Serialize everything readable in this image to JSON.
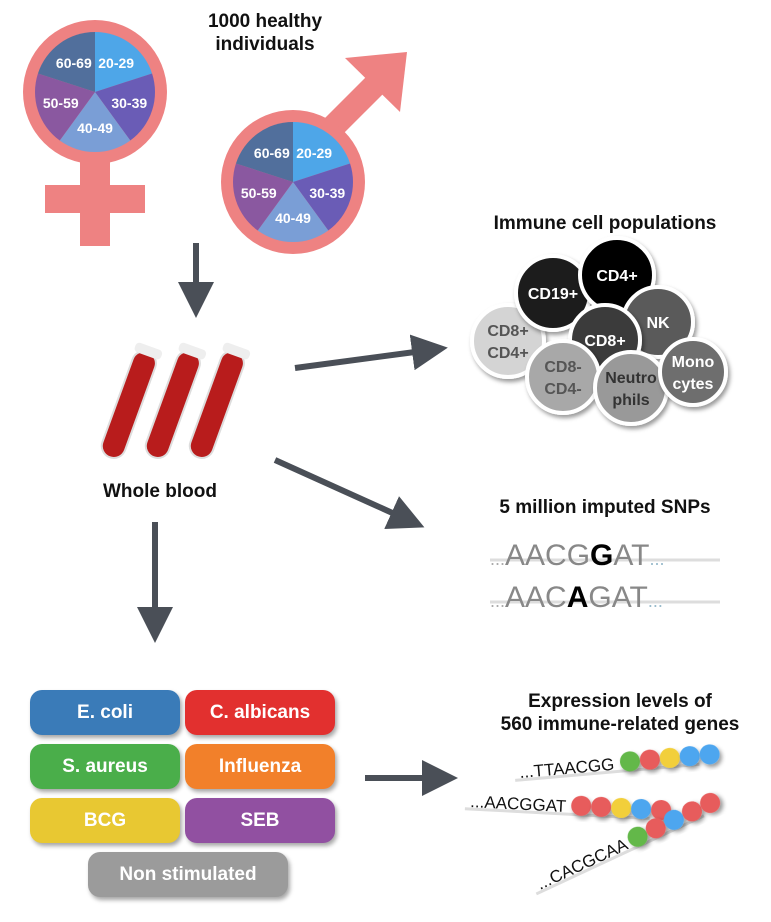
{
  "cohort": {
    "title_line1": "1000 healthy",
    "title_line2": "individuals",
    "age_groups": [
      "20-29",
      "30-39",
      "40-49",
      "50-59",
      "60-69"
    ],
    "age_colors": [
      "#4ea6e8",
      "#6a5cb6",
      "#7a9ed6",
      "#8a58a0",
      "#516f9c"
    ],
    "symbol_color": "#ee8282"
  },
  "blood": {
    "label": "Whole blood"
  },
  "cells": {
    "title": "Immune cell populations",
    "items": [
      {
        "label": "CD8+",
        "label2": "CD4+",
        "color": "#d4d4d4",
        "text": "#555"
      },
      {
        "label": "CD19+",
        "label2": "",
        "color": "#1e1e1e",
        "text": "#fff"
      },
      {
        "label": "CD4+",
        "label2": "",
        "color": "#000000",
        "text": "#fff"
      },
      {
        "label": "NK",
        "label2": "",
        "color": "#5a5a5a",
        "text": "#fff"
      },
      {
        "label": "CD8+",
        "label2": "",
        "color": "#3a3a3a",
        "text": "#fff"
      },
      {
        "label": "CD8-",
        "label2": "CD4-",
        "color": "#a8a8a8",
        "text": "#555"
      },
      {
        "label": "Neutro",
        "label2": "phils",
        "color": "#999999",
        "text": "#333"
      },
      {
        "label": "Mono",
        "label2": "cytes",
        "color": "#6e6e6e",
        "text": "#fff"
      }
    ]
  },
  "snps": {
    "title": "5 million imputed SNPs",
    "rows": [
      {
        "pre": "AACG",
        "alt": "G",
        "post": "AT"
      },
      {
        "pre": "AAC",
        "alt": "A",
        "post": "GAT"
      }
    ],
    "ellipsis": "..."
  },
  "stimuli": [
    {
      "label": "E. coli",
      "color": "#3a7bb8"
    },
    {
      "label": "C. albicans",
      "color": "#e2302f"
    },
    {
      "label": "S. aureus",
      "color": "#4aae4a"
    },
    {
      "label": "Influenza",
      "color": "#f2802a"
    },
    {
      "label": "BCG",
      "color": "#e8c832"
    },
    {
      "label": "SEB",
      "color": "#9150a1"
    },
    {
      "label": "Non stimulated",
      "color": "#9b9b9b"
    }
  ],
  "expression": {
    "title_line1": "Expression levels of",
    "title_line2": "560 immune-related genes",
    "sequences": [
      "...TTAACGG",
      "...AACGGAT",
      "...CACGCAA"
    ],
    "dot_colors": {
      "green": "#63b84a",
      "red": "#e75c5c",
      "yellow": "#f2cf3a",
      "blue": "#4ea6ef"
    }
  }
}
